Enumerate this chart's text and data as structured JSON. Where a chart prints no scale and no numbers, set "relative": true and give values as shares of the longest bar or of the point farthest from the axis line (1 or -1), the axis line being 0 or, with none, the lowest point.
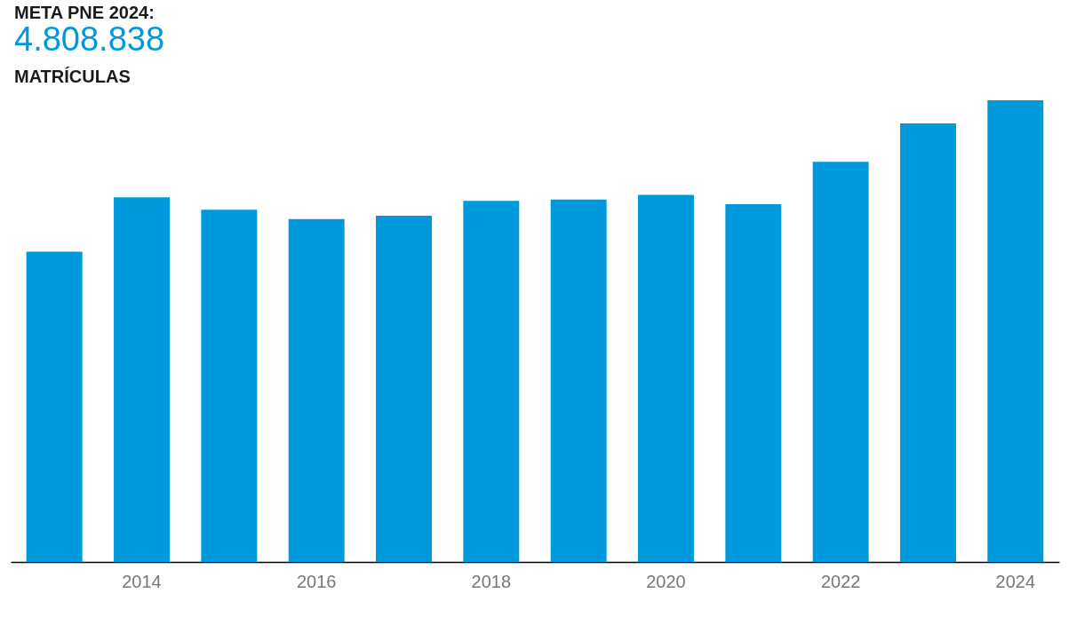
{
  "chart_data": {
    "type": "bar",
    "relative": true,
    "title": "META PNE 2024:",
    "subtitle": "4.808.838",
    "annotations": [
      "MATRÍCULAS"
    ],
    "categories": [
      null,
      "2014",
      null,
      "2016",
      null,
      "2018",
      null,
      "2020",
      null,
      "2022",
      null,
      "2024"
    ],
    "values": [
      0.672,
      0.79,
      0.763,
      0.743,
      0.75,
      0.782,
      0.785,
      0.795,
      0.775,
      0.867,
      0.95,
      1
    ],
    "color": "#0099dc",
    "grid": false
  }
}
